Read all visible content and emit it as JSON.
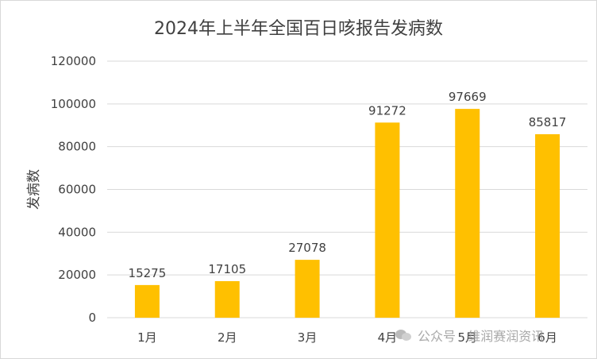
{
  "chart_data": {
    "type": "bar",
    "title": "2024年上半年全国百日咳报告发病数",
    "xlabel": "",
    "ylabel": "发病数",
    "categories": [
      "1月",
      "2月",
      "3月",
      "4月",
      "5月",
      "6月"
    ],
    "values": [
      15275,
      17105,
      27078,
      91272,
      97669,
      85817
    ],
    "data_labels": [
      "15275",
      "17105",
      "27078",
      "91272",
      "97669",
      "85817"
    ],
    "ylim": [
      0,
      120000
    ],
    "yticks": [
      0,
      20000,
      40000,
      60000,
      80000,
      100000,
      120000
    ],
    "ytick_labels": [
      "0",
      "20000",
      "40000",
      "60000",
      "80000",
      "100000",
      "120000"
    ],
    "grid": true,
    "legend": "none",
    "colors": {
      "bar": "#FFC000",
      "grid": "#d9d9d9",
      "text": "#404040"
    }
  },
  "watermark": {
    "text": "公众号 · 维润赛润资讯",
    "icon": "wechat-icon"
  }
}
